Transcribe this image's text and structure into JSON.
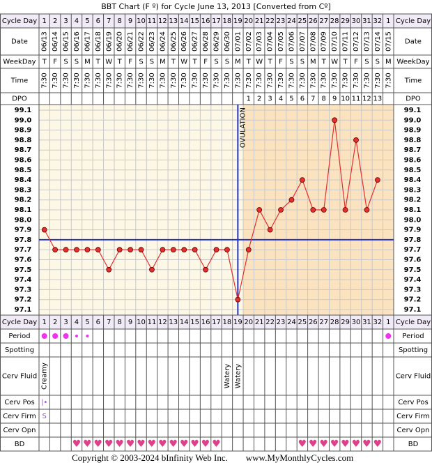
{
  "chart_data": {
    "type": "line",
    "title": "BBT Chart (F º) for Cycle June 13, 2013  [Converted from Cº]",
    "categories": [
      1,
      2,
      3,
      4,
      5,
      6,
      7,
      8,
      9,
      10,
      11,
      12,
      13,
      14,
      15,
      16,
      17,
      18,
      19,
      20,
      21,
      22,
      23,
      24,
      25,
      26,
      27,
      28,
      29,
      30,
      31,
      32,
      1
    ],
    "dates": [
      "06/13",
      "06/14",
      "06/15",
      "06/16",
      "06/17",
      "06/18",
      "06/19",
      "06/20",
      "06/21",
      "06/22",
      "06/23",
      "06/24",
      "06/25",
      "06/26",
      "06/27",
      "06/28",
      "06/29",
      "06/30",
      "07/01",
      "07/02",
      "07/03",
      "07/04",
      "07/05",
      "07/06",
      "07/07",
      "07/08",
      "07/09",
      "07/10",
      "07/11",
      "07/12",
      "07/13",
      "07/14",
      "07/15"
    ],
    "weekdays": [
      "T",
      "F",
      "S",
      "S",
      "M",
      "T",
      "W",
      "T",
      "F",
      "S",
      "S",
      "M",
      "T",
      "W",
      "T",
      "F",
      "S",
      "S",
      "M",
      "T",
      "W",
      "T",
      "F",
      "S",
      "S",
      "M",
      "T",
      "W",
      "T",
      "F",
      "S",
      "S",
      "M"
    ],
    "times": [
      "7:30",
      "7:30",
      "7:30",
      "7:30",
      "7:30",
      "7:30",
      "7:30",
      "7:30",
      "7:30",
      "7:30",
      "7:30",
      "7:30",
      "7:30",
      "7:30",
      "7:30",
      "7:30",
      "7:30",
      "7:30",
      "7:30",
      "7:30",
      "7:30",
      "7:30",
      "7:30",
      "7:30",
      "7:30",
      "7:30",
      "7:30",
      "7:30",
      "7:30",
      "7:30",
      "7:30",
      "7:30",
      "7:30"
    ],
    "dpo": [
      null,
      null,
      null,
      null,
      null,
      null,
      null,
      null,
      null,
      null,
      null,
      null,
      null,
      null,
      null,
      null,
      null,
      null,
      null,
      1,
      2,
      3,
      4,
      5,
      6,
      7,
      8,
      9,
      10,
      11,
      12,
      13,
      null
    ],
    "values": [
      97.9,
      97.7,
      97.7,
      97.7,
      97.7,
      97.7,
      97.5,
      97.7,
      97.7,
      97.7,
      97.5,
      97.7,
      97.7,
      97.7,
      97.7,
      97.5,
      97.7,
      97.7,
      97.2,
      97.7,
      98.1,
      97.9,
      98.1,
      98.2,
      98.4,
      98.1,
      98.1,
      99.0,
      98.1,
      98.8,
      98.1,
      98.4,
      null
    ],
    "color": "#e03030",
    "ylim": [
      97.044,
      99.156
    ],
    "yticks": [
      97.1,
      97.2,
      97.3,
      97.4,
      97.5,
      97.6,
      97.7,
      97.8,
      97.9,
      {
        "value": 98,
        "label": "98.0"
      },
      98.1,
      98.2,
      98.3,
      98.4,
      98.5,
      98.6,
      98.7,
      98.8,
      98.9,
      {
        "value": 99,
        "label": "99.0"
      },
      99.1
    ],
    "grid": true,
    "coverline": 97.8,
    "ovulation": {
      "label": "OVULATION",
      "day": 19
    },
    "rows": {
      "cycle_day": "Cycle Day",
      "date": "Date",
      "weekday": "WeekDay",
      "time": "Time",
      "dpo": "DPO",
      "period": "Period",
      "spotting": "Spotting",
      "cerv_fluid": "Cerv Fluid",
      "cerv_pos": "Cerv Pos",
      "cerv_firm": "Cerv Firm",
      "cerv_opn": "Cerv Opn",
      "bd": "BD"
    },
    "period": [
      2,
      2,
      2,
      1,
      1,
      null,
      null,
      null,
      null,
      null,
      null,
      null,
      null,
      null,
      null,
      null,
      null,
      null,
      null,
      null,
      null,
      null,
      null,
      null,
      null,
      null,
      null,
      null,
      null,
      null,
      null,
      null,
      2
    ],
    "cerv_fluid": [
      "Creamy",
      null,
      null,
      null,
      null,
      null,
      null,
      null,
      null,
      null,
      null,
      null,
      null,
      null,
      null,
      null,
      null,
      "Watery",
      "Watery",
      null,
      null,
      null,
      null,
      null,
      null,
      null,
      null,
      null,
      null,
      null,
      null,
      null,
      null
    ],
    "cerv_pos": [
      "|•",
      null,
      null,
      null,
      null,
      null,
      null,
      null,
      null,
      null,
      null,
      null,
      null,
      null,
      null,
      null,
      null,
      null,
      null,
      null,
      null,
      null,
      null,
      null,
      null,
      null,
      null,
      null,
      null,
      null,
      null,
      null,
      null
    ],
    "cerv_firm": [
      "S",
      null,
      null,
      null,
      null,
      null,
      null,
      null,
      null,
      null,
      null,
      null,
      null,
      null,
      null,
      null,
      null,
      null,
      null,
      null,
      null,
      null,
      null,
      null,
      null,
      null,
      null,
      null,
      null,
      null,
      null,
      null,
      null
    ],
    "bd": [
      null,
      null,
      null,
      "♥",
      "♥",
      "♥",
      "♥",
      "♥",
      "♥",
      "♥",
      "♥",
      "♥",
      "♥",
      "♥",
      "♥",
      "♥",
      "♥",
      null,
      null,
      null,
      null,
      null,
      null,
      null,
      "♥",
      "♥",
      "♥",
      "♥",
      "♥",
      "♥",
      "♥",
      "♥",
      null
    ],
    "footer": {
      "copyright": "Copyright © 2003-2024 bInfinity Web Inc.",
      "site": "www.MyMonthlyCycles.com"
    }
  }
}
